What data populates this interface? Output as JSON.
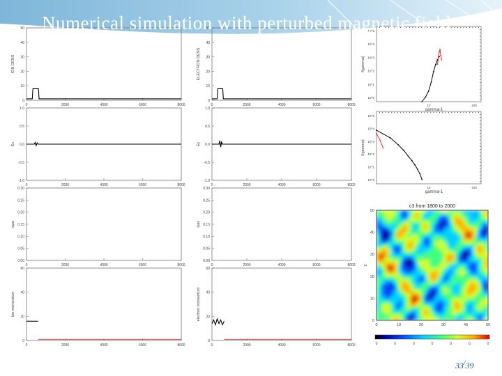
{
  "slide": {
    "title": "Numerical simulation with perturbed magnetic field",
    "page_current": "33",
    "page_total": "39"
  },
  "chart_data": [
    {
      "type": "line",
      "ylabel": "ION DENS",
      "xlim": [
        0,
        8000
      ],
      "ylim": [
        0,
        50
      ],
      "x_ticks": [
        "0",
        "2000",
        "4000",
        "6000",
        "8000"
      ],
      "y_ticks": [
        "0",
        "10",
        "20",
        "30",
        "40",
        "50"
      ],
      "series": [
        {
          "color": "#000000",
          "x": [
            0,
            300,
            330,
            620,
            650,
            8000
          ],
          "y": [
            1,
            1,
            8,
            8,
            1,
            1
          ]
        }
      ]
    },
    {
      "type": "line",
      "ylabel": "ELECTRON DENS",
      "xlim": [
        0,
        8000
      ],
      "ylim": [
        0,
        50
      ],
      "x_ticks": [
        "0",
        "2000",
        "4000",
        "6000",
        "8000"
      ],
      "y_ticks": [
        "0",
        "10",
        "20",
        "30",
        "40",
        "50"
      ],
      "series": [
        {
          "color": "#000000",
          "x": [
            0,
            300,
            330,
            620,
            650,
            8000
          ],
          "y": [
            1,
            1,
            8,
            8,
            1,
            1
          ]
        }
      ]
    },
    {
      "type": "scatter",
      "xlabel": "gamma-1",
      "ylabel": "f(gamma)",
      "y_scale": "log",
      "x_ticks": [
        "",
        "10",
        "100"
      ],
      "y_ticks": [
        "10^5",
        "10^4",
        "10^3",
        "10^2",
        "10^1",
        "10^0"
      ],
      "series": [
        {
          "color": "#000000",
          "x": [
            10,
            12,
            14,
            16,
            18,
            20,
            22,
            24
          ],
          "y": [
            1,
            2,
            5,
            20,
            100,
            300,
            600,
            1000
          ]
        },
        {
          "color": "#e03030",
          "x": [
            22,
            23,
            24,
            25,
            26,
            27
          ],
          "y": [
            300,
            900,
            2000,
            3000,
            1200,
            600
          ]
        }
      ]
    },
    {
      "type": "line",
      "ylabel": "Ex",
      "xlim": [
        0,
        8000
      ],
      "ylim": [
        -1,
        1
      ],
      "x_ticks": [
        "0",
        "2000",
        "4000",
        "6000",
        "8000"
      ],
      "y_ticks": [
        "-1.0",
        "-0.5",
        "0.0",
        "0.5",
        "1.0"
      ],
      "series": [
        {
          "color": "#e03030",
          "x": [
            0,
            8000
          ],
          "y": [
            0,
            0
          ]
        },
        {
          "color": "#000000",
          "x": [
            0,
            400,
            450,
            500,
            550,
            600,
            8000
          ],
          "y": [
            0,
            0,
            0.05,
            -0.04,
            0.03,
            0,
            0
          ]
        }
      ]
    },
    {
      "type": "line",
      "ylabel": "Ey",
      "xlim": [
        0,
        8000
      ],
      "ylim": [
        -1,
        1
      ],
      "x_ticks": [
        "0",
        "2000",
        "4000",
        "6000",
        "8000"
      ],
      "y_ticks": [
        "-1.0",
        "-0.5",
        "0.0",
        "0.5",
        "1.0"
      ],
      "series": [
        {
          "color": "#e03030",
          "x": [
            0,
            8000
          ],
          "y": [
            0,
            0
          ]
        },
        {
          "color": "#000000",
          "x": [
            0,
            400,
            450,
            500,
            550,
            600,
            8000
          ],
          "y": [
            0,
            0,
            0.1,
            -0.08,
            0.06,
            0,
            0
          ]
        }
      ]
    },
    {
      "type": "scatter",
      "xlabel": "gamma-1",
      "ylabel": "f(gamma)",
      "y_scale": "log",
      "x_ticks": [
        "",
        "10",
        "100"
      ],
      "y_ticks": [
        "10^5",
        "10^4",
        "10^3",
        "10^2",
        "10^1",
        "10^0"
      ],
      "series": [
        {
          "color": "#000000",
          "x": [
            1,
            2,
            3,
            4,
            5,
            6,
            7,
            8,
            9,
            10
          ],
          "y": [
            5000,
            1500,
            500,
            200,
            80,
            40,
            20,
            10,
            5,
            2
          ]
        },
        {
          "color": "#e03030",
          "x": [
            1,
            1.2,
            1.4
          ],
          "y": [
            3000,
            1000,
            300
          ]
        }
      ]
    },
    {
      "type": "line",
      "ylabel": "npar",
      "xlim": [
        0,
        8000
      ],
      "ylim": [
        0,
        0.3
      ],
      "x_ticks": [
        "0",
        "2000",
        "4000",
        "6000",
        "8000"
      ],
      "y_ticks": [
        "0.00",
        "0.05",
        "0.10",
        "0.15",
        "0.20",
        "0.25",
        "0.30"
      ],
      "series": []
    },
    {
      "type": "line",
      "ylabel": "ipar",
      "xlim": [
        0,
        8000
      ],
      "ylim": [
        0,
        0.3
      ],
      "x_ticks": [
        "0",
        "2000",
        "4000",
        "6000",
        "8000"
      ],
      "y_ticks": [
        "0.00",
        "0.05",
        "0.10",
        "0.15",
        "0.20",
        "0.25",
        "0.30"
      ],
      "series": []
    },
    {
      "type": "heatmap",
      "title": "c3 from 1800 to 2000",
      "ylabel": "z",
      "x_ticks": [
        "0",
        "10",
        "20",
        "30",
        "40",
        "50"
      ],
      "y_ticks": [
        "0",
        "10",
        "20",
        "30",
        "40",
        "50"
      ],
      "colorbar_ticks": [
        "0",
        "0",
        "0",
        "0",
        "0",
        "0",
        "0"
      ],
      "colormap": [
        "#0000a0",
        "#0050ff",
        "#00d0ff",
        "#40ff80",
        "#d0ff20",
        "#ffb000",
        "#e00000"
      ]
    },
    {
      "type": "line",
      "ylabel": "ion momentum",
      "xlim": [
        0,
        8000
      ],
      "ylim": [
        0,
        60
      ],
      "x_ticks": [
        "0",
        "2000",
        "4000",
        "6000",
        "8000"
      ],
      "y_ticks": [
        "0",
        "20",
        "40",
        "60"
      ],
      "series": [
        {
          "color": "#000000",
          "x": [
            0,
            600
          ],
          "y": [
            16,
            16
          ]
        },
        {
          "color": "#e03030",
          "x": [
            600,
            8000
          ],
          "y": [
            1,
            1
          ]
        }
      ]
    },
    {
      "type": "line",
      "ylabel": "electron momentum",
      "xlim": [
        0,
        8000
      ],
      "ylim": [
        0,
        60
      ],
      "x_ticks": [
        "0",
        "2000",
        "4000",
        "6000",
        "8000"
      ],
      "y_ticks": [
        "0",
        "20",
        "40",
        "60"
      ],
      "series": [
        {
          "color": "#000000",
          "x": [
            0,
            100,
            200,
            300,
            400,
            500,
            600,
            700
          ],
          "y": [
            14,
            17,
            13,
            18,
            14,
            17,
            13,
            16
          ]
        },
        {
          "color": "#e03030",
          "x": [
            700,
            8000
          ],
          "y": [
            1,
            1
          ]
        }
      ]
    }
  ]
}
